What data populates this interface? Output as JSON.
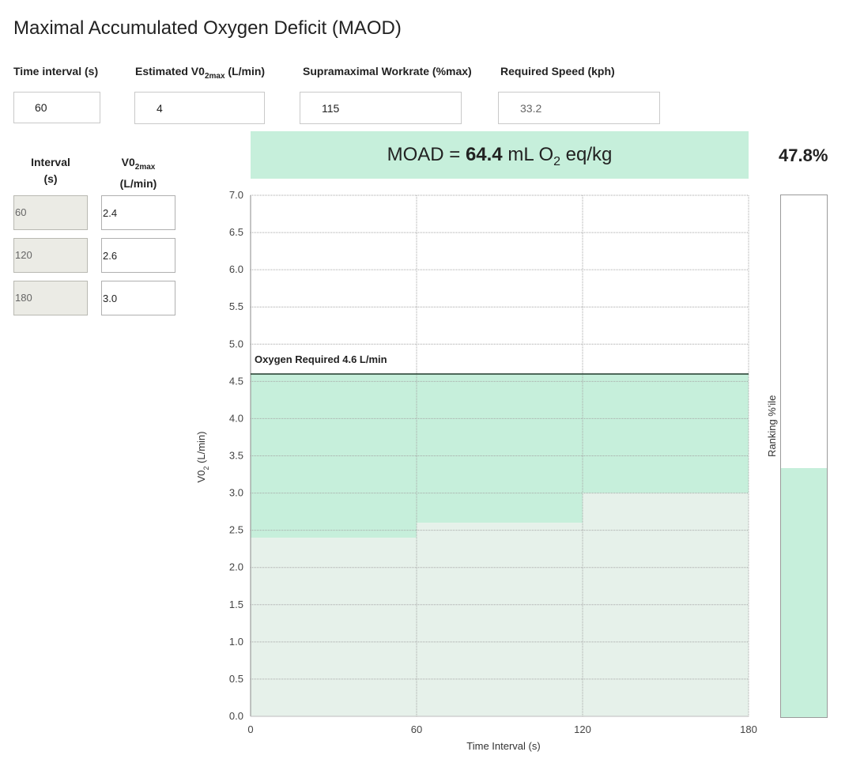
{
  "title": "Maximal Accumulated Oxygen Deficit (MAOD)",
  "inputs": {
    "time_interval": {
      "label": "Time interval (s)",
      "value": "60"
    },
    "vo2max": {
      "label_main": "Estimated V0",
      "label_sub": "2max",
      "label_tail": " (L/min)",
      "value": "4"
    },
    "workrate": {
      "label": "Supramaximal Workrate (%max)",
      "value": "115"
    },
    "speed": {
      "label": "Required Speed (kph)",
      "value": "33.2"
    }
  },
  "table": {
    "interval_header_1": "Interval",
    "interval_header_2": "(s)",
    "vo2_header_main": "V0",
    "vo2_header_sub": "2max",
    "vo2_header_units": "(L/min)",
    "rows": [
      {
        "interval": "60",
        "vo2": "2.4"
      },
      {
        "interval": "120",
        "vo2": "2.6"
      },
      {
        "interval": "180",
        "vo2": "3.0"
      }
    ]
  },
  "result": {
    "prefix": "MOAD = ",
    "value": "64.4",
    "units_main": " mL O",
    "units_sub": "2",
    "units_tail": " eq/kg"
  },
  "ranking": {
    "percent_text": "47.8%",
    "axis_label": "Ranking %'ile",
    "fill_fraction": 0.478,
    "fill_color": "#c6efdb"
  },
  "chart_data": {
    "type": "area",
    "xlabel": "Time Interval (s)",
    "ylabel_main": "V0",
    "ylabel_sub": "2",
    "ylabel_tail": " (L/min)",
    "xlim": [
      0,
      180
    ],
    "ylim": [
      0,
      7.0
    ],
    "x_ticks": [
      "0",
      "60",
      "120",
      "180"
    ],
    "y_ticks": [
      "0.0",
      "0.5",
      "1.0",
      "1.5",
      "2.0",
      "2.5",
      "3.0",
      "3.5",
      "4.0",
      "4.5",
      "5.0",
      "5.5",
      "6.0",
      "6.5",
      "7.0"
    ],
    "required_line": {
      "value": 4.6,
      "label": "Oxygen Required 4.6 L/min"
    },
    "steps": [
      {
        "x0": 0,
        "x1": 60,
        "vo2": 2.4
      },
      {
        "x0": 60,
        "x1": 120,
        "vo2": 2.6
      },
      {
        "x0": 120,
        "x1": 180,
        "vo2": 3.0
      }
    ],
    "grid": true,
    "colors": {
      "deficit": "#c6efdb",
      "uptake": "#e6f1ea",
      "grid": "#a6a6a6",
      "required_line": "#1f3a2b"
    }
  }
}
